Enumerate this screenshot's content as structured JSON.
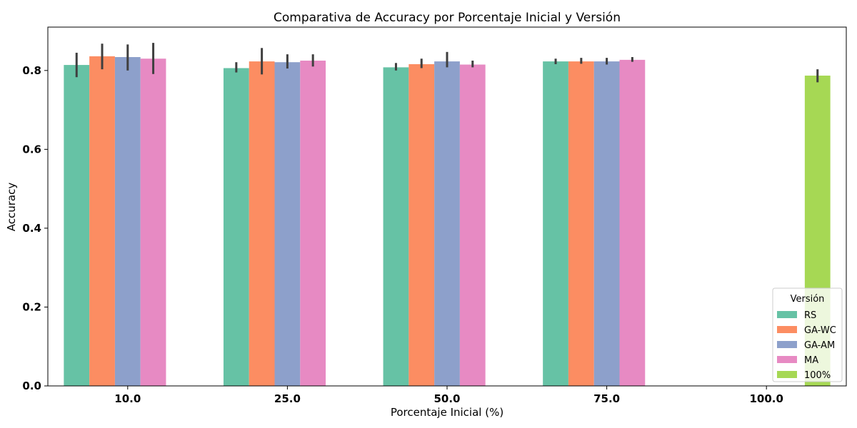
{
  "chart_data": {
    "type": "bar",
    "title": "Comparativa de Accuracy por Porcentaje Inicial y Versión",
    "xlabel": "Porcentaje Inicial (%)",
    "ylabel": "Accuracy",
    "categories": [
      "10.0",
      "25.0",
      "50.0",
      "75.0",
      "100.0"
    ],
    "ylim": [
      0,
      0.91
    ],
    "yticks": [
      "0.0",
      "0.2",
      "0.4",
      "0.6",
      "0.8"
    ],
    "legend": {
      "title": "Versión",
      "placement": "lower-right"
    },
    "series": [
      {
        "name": "RS",
        "color": "#66c2a5",
        "values": [
          0.814,
          0.806,
          0.808,
          0.823,
          null
        ],
        "err_low": [
          0.783,
          0.795,
          0.8,
          0.816,
          null
        ],
        "err_high": [
          0.845,
          0.821,
          0.819,
          0.83,
          null
        ]
      },
      {
        "name": "GA-WC",
        "color": "#fc8d62",
        "values": [
          0.836,
          0.823,
          0.816,
          0.823,
          null
        ],
        "err_low": [
          0.803,
          0.79,
          0.806,
          0.817,
          null
        ],
        "err_high": [
          0.868,
          0.857,
          0.83,
          0.832,
          null
        ]
      },
      {
        "name": "GA-AM",
        "color": "#8da0cb",
        "values": [
          0.834,
          0.821,
          0.823,
          0.823,
          null
        ],
        "err_low": [
          0.8,
          0.805,
          0.808,
          0.815,
          null
        ],
        "err_high": [
          0.866,
          0.841,
          0.847,
          0.832,
          null
        ]
      },
      {
        "name": "MA",
        "color": "#e78ac3",
        "values": [
          0.83,
          0.825,
          0.815,
          0.827,
          null
        ],
        "err_low": [
          0.791,
          0.81,
          0.808,
          0.822,
          null
        ],
        "err_high": [
          0.87,
          0.841,
          0.825,
          0.834,
          null
        ]
      },
      {
        "name": "100%",
        "color": "#a6d854",
        "values": [
          null,
          null,
          null,
          null,
          0.787
        ],
        "err_low": [
          null,
          null,
          null,
          null,
          0.77
        ],
        "err_high": [
          null,
          null,
          null,
          null,
          0.803
        ]
      }
    ]
  }
}
